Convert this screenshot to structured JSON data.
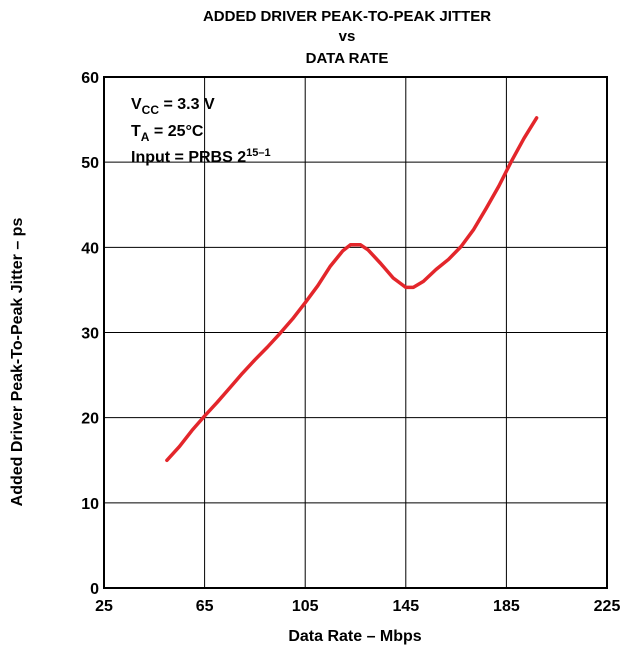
{
  "chart_data": {
    "type": "line",
    "title_lines": [
      "ADDED DRIVER PEAK-TO-PEAK JITTER",
      "vs",
      "DATA RATE"
    ],
    "xlabel": "Data Rate – Mbps",
    "ylabel": "Added Driver Peak-To-Peak Jitter – ps",
    "xlim": [
      25,
      225
    ],
    "ylim": [
      0,
      60
    ],
    "x_ticks": [
      25,
      65,
      105,
      145,
      185,
      225
    ],
    "y_ticks": [
      0,
      10,
      20,
      30,
      40,
      50,
      60
    ],
    "grid": true,
    "annotations": {
      "vcc": {
        "main": "V",
        "sub": "CC",
        "rest": " = 3.3 V"
      },
      "ta": {
        "main": "T",
        "sub": "A",
        "rest": " = 25°C"
      },
      "input": {
        "main": "Input = PRBS 2",
        "sup": "15–1"
      }
    },
    "series": [
      {
        "color": "#e3262b",
        "x": [
          50,
          55,
          60,
          65,
          70,
          75,
          80,
          85,
          90,
          95,
          100,
          105,
          110,
          115,
          120,
          123,
          127,
          130,
          135,
          140,
          145,
          148,
          152,
          157,
          162,
          167,
          172,
          177,
          182,
          187,
          192,
          197
        ],
        "y": [
          15.0,
          16.6,
          18.5,
          20.2,
          21.8,
          23.5,
          25.2,
          26.8,
          28.3,
          29.9,
          31.6,
          33.5,
          35.5,
          37.8,
          39.6,
          40.3,
          40.3,
          39.7,
          38.1,
          36.4,
          35.3,
          35.3,
          36.0,
          37.4,
          38.6,
          40.1,
          42.1,
          44.6,
          47.2,
          50.1,
          52.8,
          55.2
        ]
      }
    ]
  }
}
